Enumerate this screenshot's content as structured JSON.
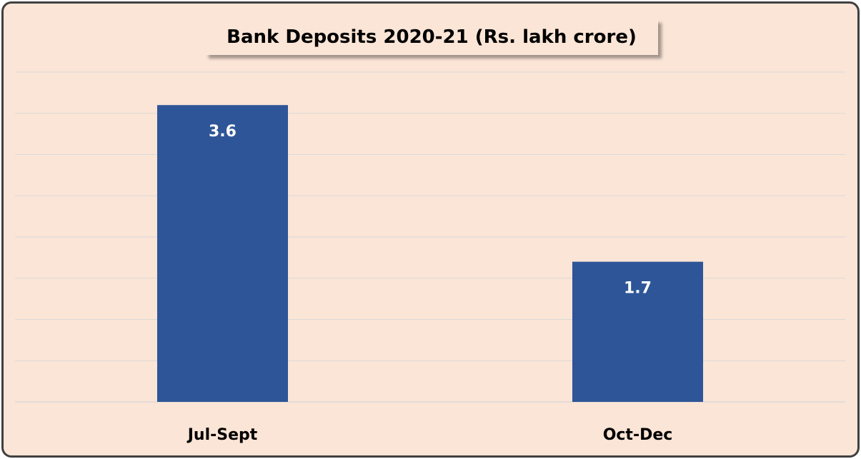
{
  "chart_data": {
    "type": "bar",
    "title": "Bank Deposits 2020-21 (Rs. lakh crore)",
    "categories": [
      "Jul-Sept",
      "Oct-Dec"
    ],
    "values": [
      3.6,
      1.7
    ],
    "value_labels": [
      "3.6",
      "1.7"
    ],
    "xlabel": "",
    "ylabel": "",
    "ylim": [
      0,
      4
    ],
    "grid": true,
    "legend": "none",
    "colors": {
      "bar": "#2e5597",
      "background": "#fbe5d6",
      "grid": "#d9d9d9",
      "border": "#404040"
    }
  }
}
